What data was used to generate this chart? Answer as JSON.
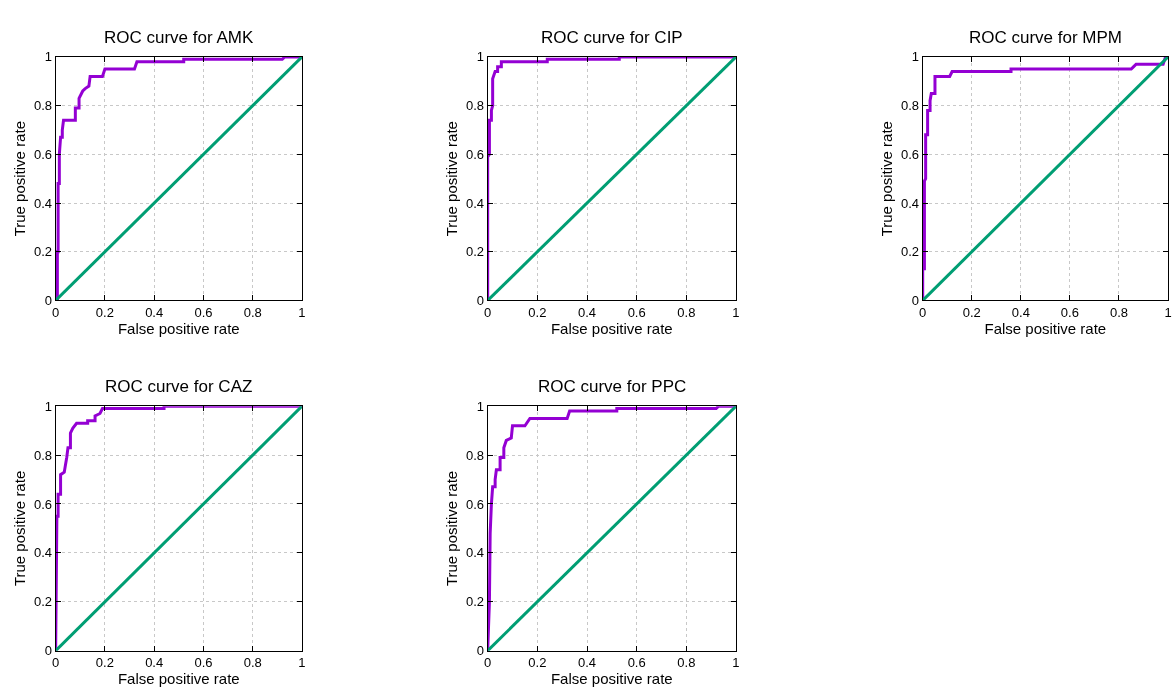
{
  "chart_data": [
    {
      "type": "line",
      "title": "ROC curve for AMK",
      "xlabel": "False positive rate",
      "ylabel": "True positive rate",
      "xlim": [
        0,
        1
      ],
      "ylim": [
        0,
        1
      ],
      "xticks": [
        0,
        0.2,
        0.4,
        0.6,
        0.8,
        1
      ],
      "yticks": [
        0,
        0.2,
        0.4,
        0.6,
        0.8,
        1
      ],
      "grid": true,
      "series": [
        {
          "color": "#9400d3",
          "x": [
            0,
            0.007,
            0.007,
            0.01,
            0.01,
            0.015,
            0.015,
            0.02,
            0.027,
            0.027,
            0.032,
            0.08,
            0.08,
            0.095,
            0.095,
            0.11,
            0.12,
            0.135,
            0.14,
            0.19,
            0.2,
            0.32,
            0.33,
            0.52,
            0.52,
            0.92,
            0.93,
            1
          ],
          "values": [
            0,
            0,
            0.2,
            0.2,
            0.48,
            0.48,
            0.6,
            0.67,
            0.67,
            0.7,
            0.74,
            0.74,
            0.79,
            0.79,
            0.83,
            0.86,
            0.87,
            0.88,
            0.92,
            0.92,
            0.95,
            0.95,
            0.98,
            0.98,
            0.99,
            0.99,
            1,
            1
          ]
        },
        {
          "color": "#009e73",
          "x": [
            0,
            1
          ],
          "values": [
            0,
            1
          ]
        }
      ]
    },
    {
      "type": "line",
      "title": "ROC curve for CIP",
      "xlabel": "False positive rate",
      "ylabel": "True positive rate",
      "xlim": [
        0,
        1
      ],
      "ylim": [
        0,
        1
      ],
      "xticks": [
        0,
        0.2,
        0.4,
        0.6,
        0.8,
        1
      ],
      "yticks": [
        0,
        0.2,
        0.4,
        0.6,
        0.8,
        1
      ],
      "grid": true,
      "series": [
        {
          "color": "#9400d3",
          "x": [
            0,
            0,
            0.007,
            0.007,
            0.015,
            0.015,
            0.02,
            0.02,
            0.03,
            0.04,
            0.04,
            0.055,
            0.055,
            0.24,
            0.24,
            0.53,
            0.53,
            1
          ],
          "values": [
            0,
            0.59,
            0.6,
            0.74,
            0.74,
            0.78,
            0.8,
            0.91,
            0.94,
            0.94,
            0.96,
            0.96,
            0.98,
            0.98,
            0.99,
            0.99,
            1,
            1
          ]
        },
        {
          "color": "#009e73",
          "x": [
            0,
            1
          ],
          "values": [
            0,
            1
          ]
        }
      ]
    },
    {
      "type": "line",
      "title": "ROC curve for MPM",
      "xlabel": "False positive rate",
      "ylabel": "True positive rate",
      "xlim": [
        0,
        1
      ],
      "ylim": [
        0,
        1
      ],
      "xticks": [
        0,
        0.2,
        0.4,
        0.6,
        0.8,
        1
      ],
      "yticks": [
        0,
        0.2,
        0.4,
        0.6,
        0.8,
        1
      ],
      "grid": true,
      "series": [
        {
          "color": "#9400d3",
          "x": [
            0,
            0,
            0.007,
            0.007,
            0.012,
            0.012,
            0.02,
            0.02,
            0.03,
            0.03,
            0.035,
            0.05,
            0.05,
            0.11,
            0.12,
            0.36,
            0.36,
            0.85,
            0.86,
            0.87,
            0.98,
            0.99,
            1
          ],
          "values": [
            0,
            0.13,
            0.13,
            0.49,
            0.5,
            0.68,
            0.68,
            0.78,
            0.78,
            0.82,
            0.85,
            0.85,
            0.92,
            0.92,
            0.94,
            0.94,
            0.95,
            0.95,
            0.96,
            0.97,
            0.97,
            1,
            1
          ]
        },
        {
          "color": "#009e73",
          "x": [
            0,
            1
          ],
          "values": [
            0,
            1
          ]
        }
      ]
    },
    {
      "type": "line",
      "title": "ROC curve for CAZ",
      "xlabel": "False positive rate",
      "ylabel": "True positive rate",
      "xlim": [
        0,
        1
      ],
      "ylim": [
        0,
        1
      ],
      "xticks": [
        0,
        0.2,
        0.4,
        0.6,
        0.8,
        1
      ],
      "yticks": [
        0,
        0.2,
        0.4,
        0.6,
        0.8,
        1
      ],
      "grid": true,
      "series": [
        {
          "color": "#9400d3",
          "x": [
            0,
            0.005,
            0.01,
            0.01,
            0.02,
            0.02,
            0.035,
            0.04,
            0.045,
            0.05,
            0.06,
            0.06,
            0.07,
            0.085,
            0.13,
            0.13,
            0.16,
            0.16,
            0.18,
            0.19,
            0.44,
            0.44,
            1
          ],
          "values": [
            0,
            0.55,
            0.55,
            0.64,
            0.64,
            0.72,
            0.73,
            0.76,
            0.79,
            0.83,
            0.83,
            0.89,
            0.91,
            0.93,
            0.93,
            0.94,
            0.94,
            0.96,
            0.97,
            0.99,
            0.99,
            1,
            1
          ]
        },
        {
          "color": "#009e73",
          "x": [
            0,
            1
          ],
          "values": [
            0,
            1
          ]
        }
      ]
    },
    {
      "type": "line",
      "title": "ROC curve for PPC",
      "xlabel": "False positive rate",
      "ylabel": "True positive rate",
      "xlim": [
        0,
        1
      ],
      "ylim": [
        0,
        1
      ],
      "xticks": [
        0,
        0.2,
        0.4,
        0.6,
        0.8,
        1
      ],
      "yticks": [
        0,
        0.2,
        0.4,
        0.6,
        0.8,
        1
      ],
      "grid": true,
      "series": [
        {
          "color": "#9400d3",
          "x": [
            0,
            0.007,
            0.01,
            0.015,
            0.02,
            0.03,
            0.03,
            0.035,
            0.05,
            0.05,
            0.065,
            0.065,
            0.075,
            0.095,
            0.1,
            0.15,
            0.17,
            0.32,
            0.33,
            0.52,
            0.52,
            0.92,
            0.93,
            1
          ],
          "values": [
            0,
            0.2,
            0.48,
            0.6,
            0.67,
            0.67,
            0.7,
            0.74,
            0.74,
            0.79,
            0.79,
            0.83,
            0.86,
            0.87,
            0.92,
            0.92,
            0.95,
            0.95,
            0.98,
            0.98,
            0.99,
            0.99,
            1,
            1
          ]
        },
        {
          "color": "#009e73",
          "x": [
            0,
            1
          ],
          "values": [
            0,
            1
          ]
        }
      ]
    }
  ]
}
